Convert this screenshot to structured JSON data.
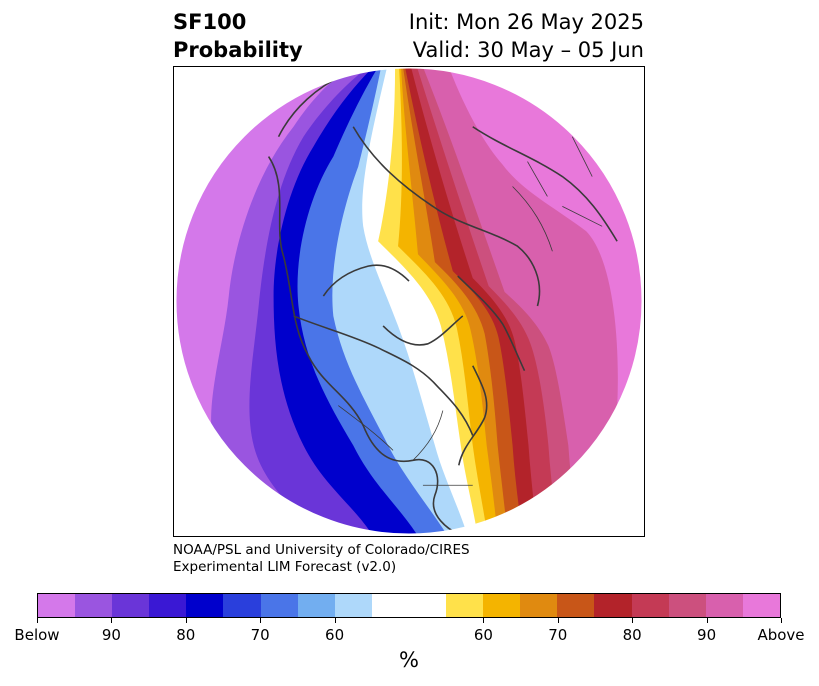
{
  "header": {
    "title_line1": "SF100",
    "title_line2": "Probability",
    "init_text": "Init: Mon 26 May 2025",
    "valid_text": "Valid: 30 May – 05 Jun"
  },
  "credit": {
    "line1": "NOAA/PSL and University of Colorado/CIRES",
    "line2": "Experimental LIM Forecast (v2.0)"
  },
  "colorbar": {
    "unit_label": "%",
    "tick_labels": [
      "Below",
      "90",
      "80",
      "70",
      "60",
      "60",
      "70",
      "80",
      "90",
      "Above"
    ],
    "colors": [
      "#d478ea",
      "#9a55e0",
      "#6a35d8",
      "#3a18d4",
      "#0000cc",
      "#2a3fdc",
      "#4a75e8",
      "#72aef0",
      "#aed8fa",
      "#ffffff",
      "#ffe14a",
      "#f4b400",
      "#e08a10",
      "#c85618",
      "#b3232a",
      "#c43a55",
      "#cc507e",
      "#d860ad",
      "#e878da"
    ]
  },
  "map": {
    "projection": "north-polar-stereographic",
    "colors": {
      "far_below": "#d478ea",
      "below_90": "#9a55e0",
      "below_80": "#6a35d8",
      "below_75": "#3a18d4",
      "below_70": "#0000cc",
      "below_65": "#2a3fdc",
      "below_60": "#4a75e8",
      "below_55": "#72aef0",
      "near_normal_below": "#aed8fa",
      "neutral": "#ffffff",
      "above_55": "#ffe14a",
      "above_60": "#f4b400",
      "above_65": "#e08a10",
      "above_70": "#c85618",
      "above_75": "#b3232a",
      "above_80": "#c43a55",
      "above_85": "#cc507e",
      "above_90": "#d860ad",
      "far_above": "#e878da",
      "coastline": "#3a3a3a"
    }
  }
}
